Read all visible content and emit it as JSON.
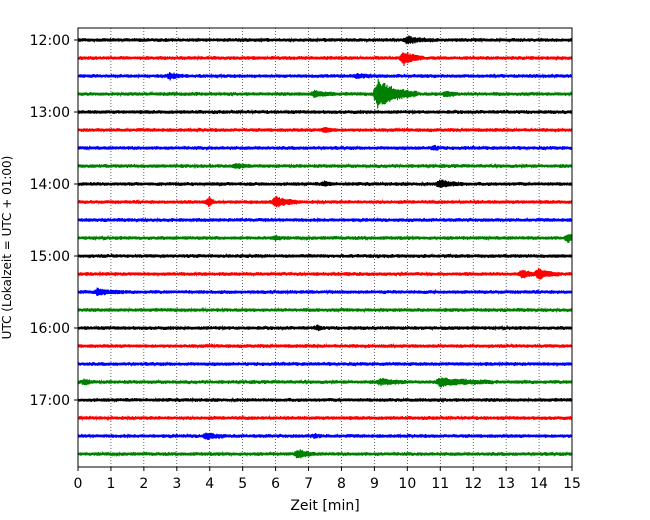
{
  "chart_data": {
    "type": "line",
    "title": "",
    "xlabel": "Zeit  [min]",
    "ylabel": "UTC (Lokalzeit = UTC + 01:00)",
    "xlim": [
      0,
      15
    ],
    "xticks": [
      "0",
      "1",
      "2",
      "3",
      "4",
      "5",
      "6",
      "7",
      "8",
      "9",
      "10",
      "11",
      "12",
      "13",
      "14",
      "15"
    ],
    "yticks": [
      {
        "row": 0,
        "label": "12:00"
      },
      {
        "row": 4,
        "label": "13:00"
      },
      {
        "row": 8,
        "label": "14:00"
      },
      {
        "row": 12,
        "label": "15:00"
      },
      {
        "row": 16,
        "label": "16:00"
      },
      {
        "row": 20,
        "label": "17:00"
      }
    ],
    "grid_x": true,
    "colors": [
      "#000000",
      "#ff0000",
      "#0000ff",
      "#008000"
    ],
    "traces": [
      {
        "start": "12:00",
        "color": "#000000",
        "events": [
          {
            "t": 10.0,
            "amp": 0.35,
            "dur": 0.8
          }
        ]
      },
      {
        "start": "12:15",
        "color": "#ff0000",
        "events": [
          {
            "t": 9.9,
            "amp": 0.7,
            "dur": 0.6
          }
        ]
      },
      {
        "start": "12:30",
        "color": "#0000ff",
        "events": [
          {
            "t": 2.8,
            "amp": 0.3,
            "dur": 0.4
          },
          {
            "t": 8.5,
            "amp": 0.2,
            "dur": 0.6
          }
        ]
      },
      {
        "start": "12:45",
        "color": "#008000",
        "events": [
          {
            "t": 7.2,
            "amp": 0.35,
            "dur": 0.6
          },
          {
            "t": 9.1,
            "amp": 1.6,
            "dur": 1.2
          },
          {
            "t": 11.2,
            "amp": 0.3,
            "dur": 0.4
          }
        ]
      },
      {
        "start": "13:00",
        "color": "#000000",
        "events": []
      },
      {
        "start": "13:15",
        "color": "#ff0000",
        "events": [
          {
            "t": 7.5,
            "amp": 0.25,
            "dur": 0.3
          }
        ]
      },
      {
        "start": "13:30",
        "color": "#0000ff",
        "events": [
          {
            "t": 10.8,
            "amp": 0.2,
            "dur": 0.3
          }
        ]
      },
      {
        "start": "13:45",
        "color": "#008000",
        "events": [
          {
            "t": 4.8,
            "amp": 0.2,
            "dur": 0.6
          }
        ]
      },
      {
        "start": "14:00",
        "color": "#000000",
        "events": [
          {
            "t": 7.5,
            "amp": 0.2,
            "dur": 0.3
          },
          {
            "t": 11.0,
            "amp": 0.4,
            "dur": 0.7
          }
        ]
      },
      {
        "start": "14:15",
        "color": "#ff0000",
        "events": [
          {
            "t": 4.0,
            "amp": 0.5,
            "dur": 0.15
          },
          {
            "t": 6.0,
            "amp": 0.55,
            "dur": 0.8
          }
        ]
      },
      {
        "start": "14:30",
        "color": "#0000ff",
        "events": []
      },
      {
        "start": "14:45",
        "color": "#008000",
        "events": [
          {
            "t": 6.0,
            "amp": 0.2,
            "dur": 0.3
          },
          {
            "t": 14.9,
            "amp": 0.4,
            "dur": 0.3
          }
        ]
      },
      {
        "start": "15:00",
        "color": "#000000",
        "events": []
      },
      {
        "start": "15:15",
        "color": "#ff0000",
        "events": [
          {
            "t": 13.5,
            "amp": 0.45,
            "dur": 0.4
          },
          {
            "t": 14.0,
            "amp": 0.6,
            "dur": 0.6
          }
        ]
      },
      {
        "start": "15:30",
        "color": "#0000ff",
        "events": [
          {
            "t": 0.6,
            "amp": 0.3,
            "dur": 0.8
          }
        ]
      },
      {
        "start": "15:45",
        "color": "#008000",
        "events": []
      },
      {
        "start": "16:00",
        "color": "#000000",
        "events": [
          {
            "t": 7.3,
            "amp": 0.2,
            "dur": 0.2
          }
        ]
      },
      {
        "start": "16:15",
        "color": "#ff0000",
        "events": []
      },
      {
        "start": "16:30",
        "color": "#0000ff",
        "events": []
      },
      {
        "start": "16:45",
        "color": "#008000",
        "events": [
          {
            "t": 0.2,
            "amp": 0.25,
            "dur": 0.3
          },
          {
            "t": 9.2,
            "amp": 0.3,
            "dur": 0.8
          },
          {
            "t": 11.0,
            "amp": 0.45,
            "dur": 1.6
          }
        ]
      },
      {
        "start": "17:00",
        "color": "#000000",
        "events": []
      },
      {
        "start": "17:15",
        "color": "#ff0000",
        "events": []
      },
      {
        "start": "17:30",
        "color": "#0000ff",
        "events": [
          {
            "t": 3.9,
            "amp": 0.3,
            "dur": 0.6
          },
          {
            "t": 7.2,
            "amp": 0.2,
            "dur": 0.2
          }
        ]
      },
      {
        "start": "17:45",
        "color": "#008000",
        "events": [
          {
            "t": 6.7,
            "amp": 0.45,
            "dur": 0.5
          }
        ]
      }
    ]
  }
}
